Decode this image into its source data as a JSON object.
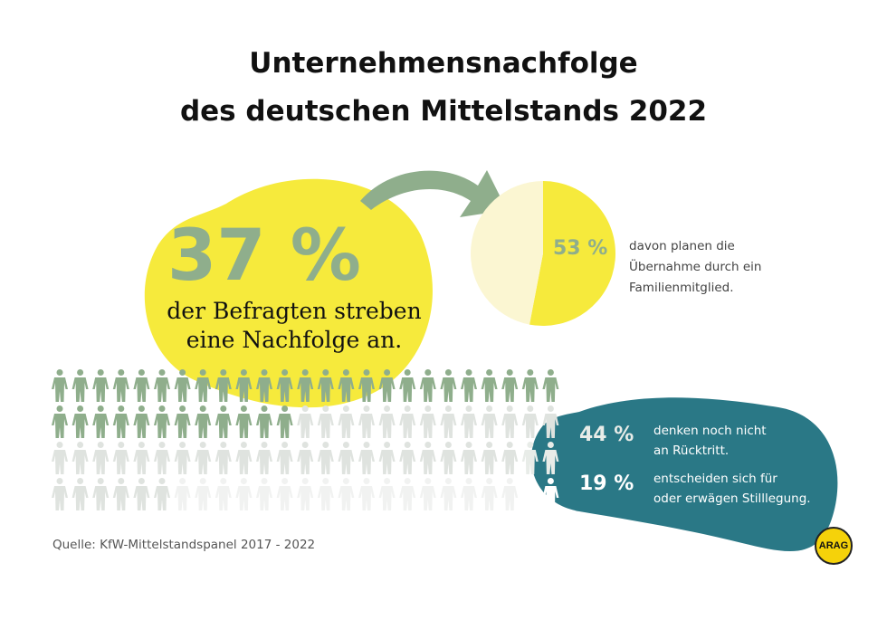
{
  "title": {
    "line1": "Unternehmensnachfolge",
    "line2": "des deutschen Mittelstands 2022"
  },
  "main_stat": {
    "value": "37 %",
    "caption_line1": "der Befragten streben",
    "caption_line2": "eine Nachfolge an."
  },
  "pie_stat": {
    "value": "53 %",
    "caption_line1": "davon planen die",
    "caption_line2": "Übernahme durch ein",
    "caption_line3": "Familienmitglied."
  },
  "stat_44": {
    "value": "44 %",
    "caption_line1": "denken noch nicht",
    "caption_line2": "an Rücktritt."
  },
  "stat_19": {
    "value": "19 %",
    "caption_line1": "entscheiden sich für",
    "caption_line2": "oder erwägen Stilllegung."
  },
  "source": "Quelle: KfW-Mittelstandspanel 2017 - 2022",
  "logo": "ARAG",
  "colors": {
    "yellow": "#f6ea3c",
    "pale_yellow": "#fbf6d2",
    "green": "#8fae8c",
    "light_grey": "#dfe3df",
    "faint": "#f1f2f1",
    "teal": "#2a7886"
  },
  "chart_data": [
    {
      "type": "pie",
      "values": [
        53,
        47
      ],
      "labels": [
        "53 %",
        ""
      ],
      "colors": [
        "#f6ea3c",
        "#fbf6d2"
      ]
    },
    {
      "type": "pictogram",
      "total": 100,
      "columns": 25,
      "groups": [
        {
          "label": "37 %",
          "count": 37,
          "color": "#8fae8c"
        },
        {
          "label": "44 %",
          "count": 44,
          "color": "#dfe3df"
        },
        {
          "label": "19 %",
          "count": 19,
          "color": "#f1f2f1"
        }
      ]
    }
  ]
}
